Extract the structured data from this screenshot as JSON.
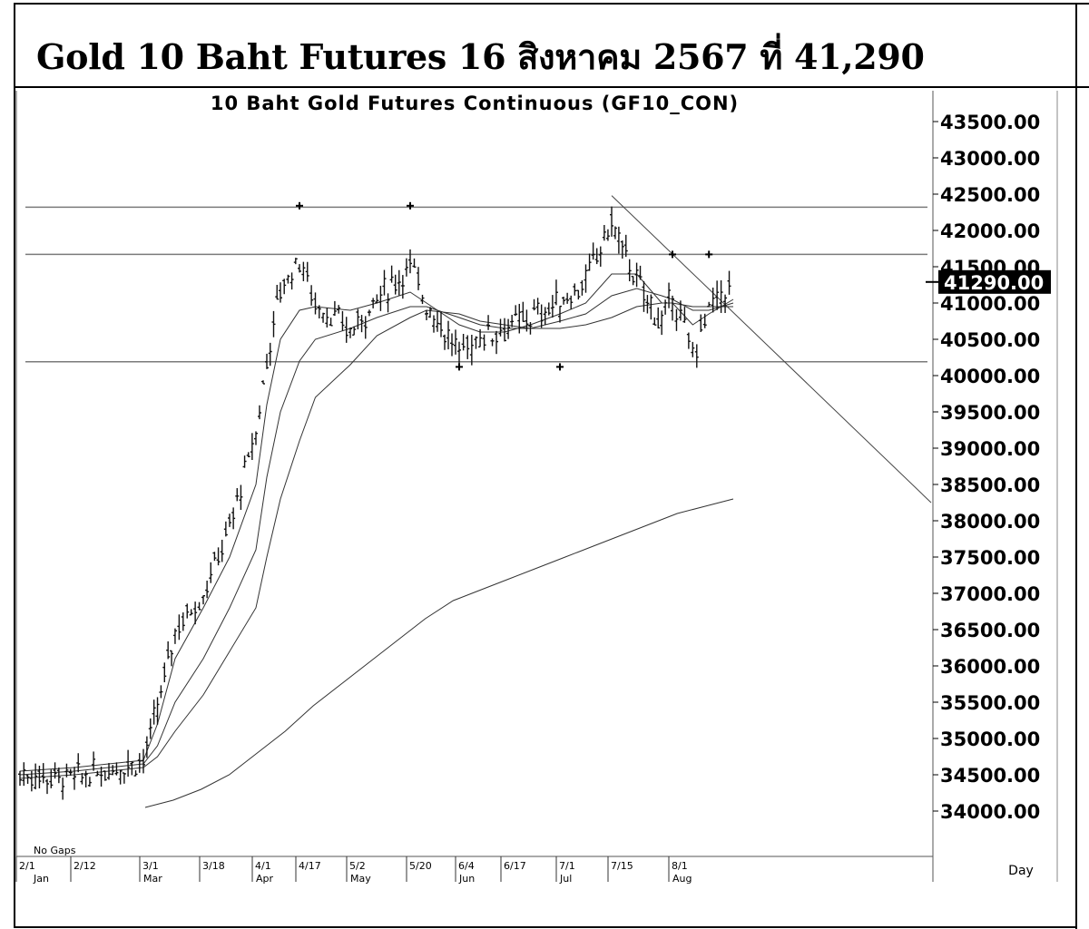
{
  "heading": "Gold 10 Baht Futures 16 สิงหาคม 2567 ที่ 41,290",
  "chart_data": {
    "type": "line",
    "subtype": "candlestick-with-moving-averages",
    "title": "10 Baht Gold Futures Continuous (GF10_CON)",
    "xlabel": "Day",
    "ylabel": "",
    "ylim": [
      33500,
      43750
    ],
    "y_ticks": [
      "43500.00",
      "43000.00",
      "42500.00",
      "42000.00",
      "41500.00",
      "41000.00",
      "40500.00",
      "40000.00",
      "39500.00",
      "39000.00",
      "38500.00",
      "38000.00",
      "37500.00",
      "37000.00",
      "36500.00",
      "36000.00",
      "35500.00",
      "35000.00",
      "34500.00",
      "34000.00"
    ],
    "last_price_label": "41290.00",
    "last_price": 41290,
    "date_ticks": [
      "2/1",
      "2/12",
      "3/1",
      "3/18",
      "4/1",
      "4/17",
      "5/2",
      "5/20",
      "6/4",
      "6/17",
      "7/1",
      "7/15",
      "8/1"
    ],
    "month_labels": [
      "Jan",
      "Mar",
      "Apr",
      "May",
      "Jun",
      "Jul",
      "Aug"
    ],
    "note": "No Gaps",
    "grid": false,
    "horizontal_levels": [
      42320,
      41670,
      40190
    ],
    "trendline": {
      "from_x": "7/15",
      "from_y": 42480,
      "to_x": "end",
      "to_y": 38250
    },
    "close_series": [
      [
        "2/1",
        34500
      ],
      [
        "2/12",
        34450
      ],
      [
        "3/1",
        34700
      ],
      [
        "3/5",
        35400
      ],
      [
        "3/10",
        36500
      ],
      [
        "3/18",
        37000
      ],
      [
        "3/25",
        37900
      ],
      [
        "4/1",
        39200
      ],
      [
        "4/5",
        40200
      ],
      [
        "4/10",
        41200
      ],
      [
        "4/17",
        41600
      ],
      [
        "4/22",
        41000
      ],
      [
        "5/2",
        40600
      ],
      [
        "5/10",
        41050
      ],
      [
        "5/20",
        41500
      ],
      [
        "5/25",
        41000
      ],
      [
        "6/4",
        40300
      ],
      [
        "6/10",
        40550
      ],
      [
        "6/17",
        40650
      ],
      [
        "6/24",
        40800
      ],
      [
        "7/1",
        41000
      ],
      [
        "7/8",
        41300
      ],
      [
        "7/15",
        42100
      ],
      [
        "7/22",
        41300
      ],
      [
        "7/29",
        40700
      ],
      [
        "8/1",
        41100
      ],
      [
        "8/6",
        40300
      ],
      [
        "8/10",
        40900
      ],
      [
        "8/16",
        41290
      ]
    ],
    "series": [
      {
        "values": [
          34550,
          34600,
          34700,
          35200,
          36100,
          36800,
          37500,
          38500,
          39600,
          40500,
          40900,
          40950,
          40900,
          41000,
          41150,
          41000,
          40700,
          40600,
          40600,
          40700,
          40850,
          41000,
          41400,
          41400,
          41000,
          41000,
          40700,
          40850,
          41050
        ]
      },
      {
        "values": [
          34500,
          34550,
          34650,
          34900,
          35500,
          36100,
          36800,
          37600,
          38600,
          39500,
          40200,
          40500,
          40650,
          40800,
          40950,
          40950,
          40800,
          40700,
          40650,
          40650,
          40750,
          40850,
          41100,
          41200,
          41100,
          41050,
          40900,
          40900,
          41000
        ]
      },
      {
        "values": [
          34450,
          34500,
          34600,
          34750,
          35100,
          35600,
          36200,
          36800,
          37500,
          38300,
          39100,
          39700,
          40150,
          40550,
          40800,
          40900,
          40850,
          40750,
          40700,
          40650,
          40650,
          40700,
          40800,
          40950,
          41000,
          41000,
          40950,
          40950,
          40950
        ]
      },
      {
        "values": [
          34050,
          34150,
          34300,
          34500,
          34800,
          35100,
          35450,
          35750,
          36050,
          36350,
          36650,
          36900,
          37050,
          37200,
          37350,
          37500,
          37650,
          37800,
          37950,
          38100,
          38200,
          38300
        ]
      }
    ],
    "swing_markers": [
      [
        "4/17",
        42340
      ],
      [
        "5/20",
        42340
      ],
      [
        "6/4",
        40120
      ],
      [
        "7/1",
        40120
      ],
      [
        "8/1",
        41670
      ],
      [
        "8/10",
        41670
      ]
    ]
  }
}
